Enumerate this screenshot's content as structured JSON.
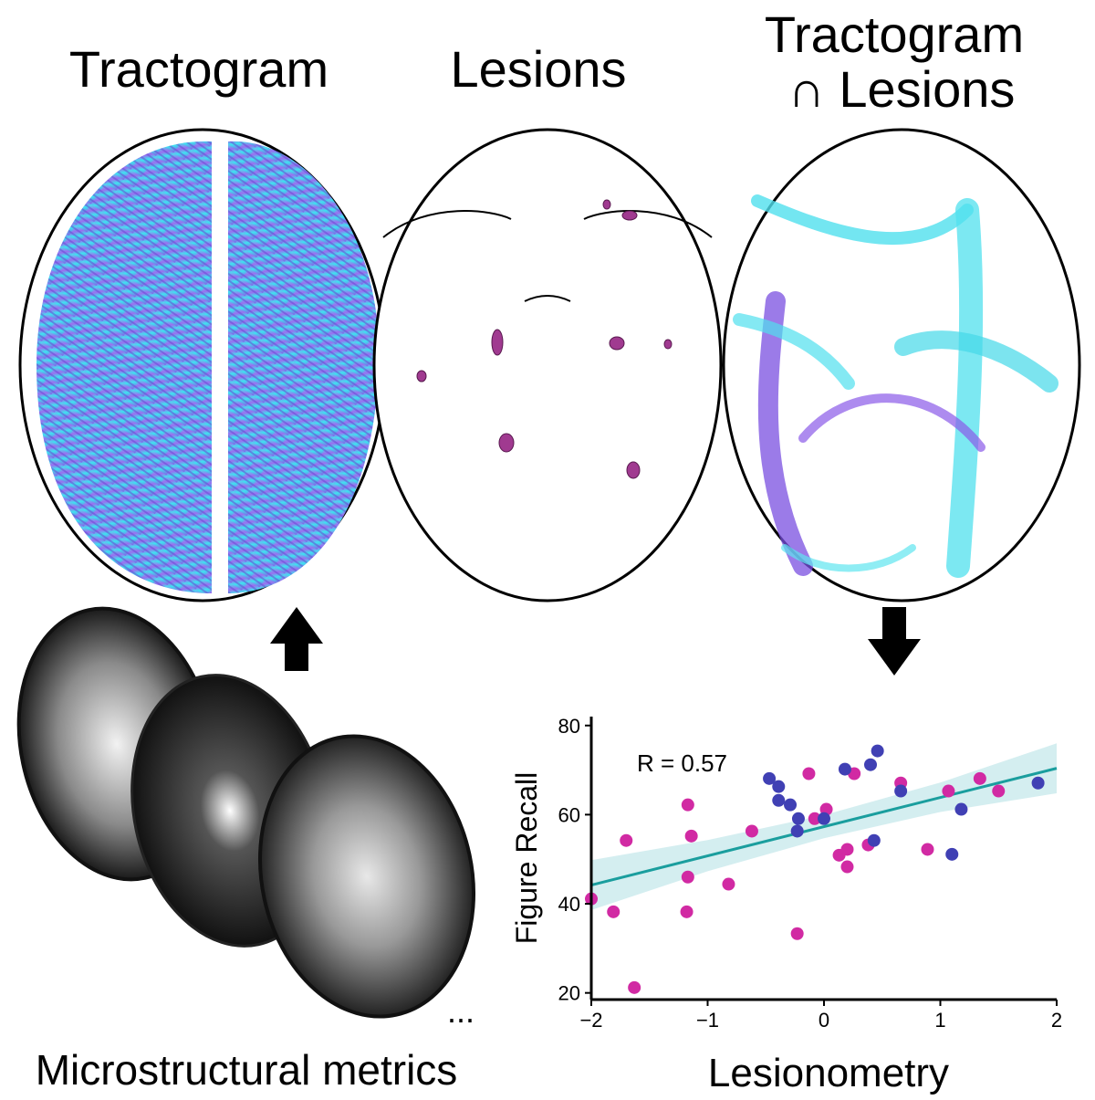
{
  "titles": {
    "tractogram": "Tractogram",
    "lesions": "Lesions",
    "intersection": [
      "Tractogram",
      "∩ Lesions"
    ]
  },
  "bottom_caption": "Microstructural metrics",
  "ellipsis": "...",
  "chart_data": {
    "type": "scatter",
    "xlabel": "Lesionometry",
    "ylabel": "Figure Recall",
    "annotation": "R = 0.57",
    "xlim": [
      -2,
      2
    ],
    "ylim": [
      18.5,
      82
    ],
    "xticks": [
      {
        "value": -2,
        "label": "−2"
      },
      {
        "value": -1,
        "label": "−1"
      },
      0,
      1,
      2
    ],
    "yticks": [
      20,
      40,
      60,
      80
    ],
    "series": [
      {
        "color": "#d12aa3",
        "x": [
          -2.0,
          -1.63,
          -1.7,
          -1.81,
          -1.17,
          -1.14,
          -1.17,
          -1.18,
          -0.82,
          -0.62,
          -0.23,
          -0.13,
          -0.08,
          0.02,
          0.13,
          0.2,
          0.2,
          0.26,
          0.38,
          0.66,
          0.89,
          1.07,
          1.34,
          1.5
        ],
        "values": [
          41.1,
          21.2,
          54.2,
          38.2,
          62.2,
          55.2,
          46.0,
          38.2,
          44.4,
          56.3,
          33.3,
          69.2,
          59.1,
          61.2,
          50.9,
          52.2,
          48.3,
          69.2,
          53.2,
          67.1,
          52.2,
          65.3,
          68.1,
          65.3
        ]
      },
      {
        "color": "#4040b4",
        "x": [
          -0.47,
          -0.39,
          -0.39,
          -0.29,
          -0.22,
          -0.23,
          0.0,
          0.18,
          0.4,
          0.46,
          0.43,
          0.66,
          1.1,
          1.18,
          1.84
        ],
        "values": [
          68.1,
          66.3,
          63.2,
          62.2,
          59.1,
          56.3,
          59.1,
          70.2,
          71.2,
          74.3,
          54.2,
          65.3,
          51.1,
          61.2,
          67.1
        ]
      }
    ],
    "fit": {
      "color": "#1a9e9e",
      "x": [
        -2,
        2
      ],
      "values": [
        44.2,
        70.4
      ]
    },
    "band": {
      "color": "#b8e3e6",
      "x": [
        -2,
        -1,
        0,
        1,
        2
      ],
      "lower": [
        38.6,
        47.3,
        54.7,
        60.6,
        64.8
      ],
      "upper": [
        49.8,
        54.3,
        59.9,
        67.2,
        76.0
      ]
    }
  }
}
